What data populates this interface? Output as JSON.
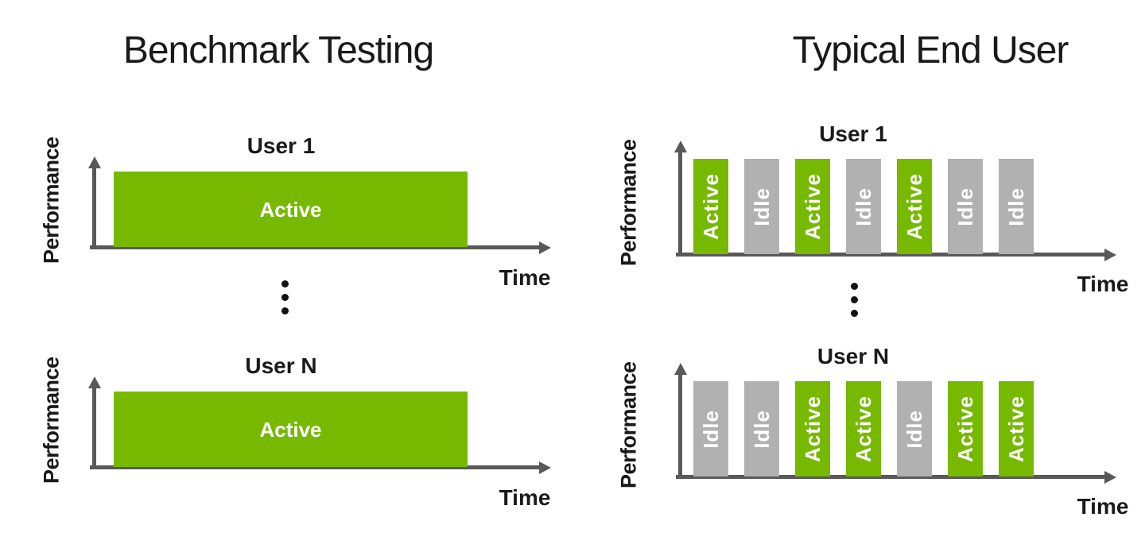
{
  "colors": {
    "active_green": "#76B900",
    "idle_gray": "#B1B1B1",
    "axis_gray": "#595959",
    "text_dark": "#1A1A1A",
    "bar_label_white": "#FFFFFF",
    "background": "#FFFFFF"
  },
  "ellipsis": {
    "dot_count": 3
  },
  "columns": [
    {
      "title": "Benchmark Testing",
      "charts": [
        {
          "user_label": "User 1",
          "y_axis_label": "Performance",
          "x_axis_label": "Time",
          "bar_style": "continuous",
          "bars": [
            {
              "label": "Active",
              "state": "active"
            }
          ]
        },
        {
          "user_label": "User N",
          "y_axis_label": "Performance",
          "x_axis_label": "Time",
          "bar_style": "continuous",
          "bars": [
            {
              "label": "Active",
              "state": "active"
            }
          ]
        }
      ]
    },
    {
      "title": "Typical End User",
      "charts": [
        {
          "user_label": "User 1",
          "y_axis_label": "Performance",
          "x_axis_label": "Time",
          "bar_style": "segmented",
          "bars": [
            {
              "label": "Active",
              "state": "active"
            },
            {
              "label": "Idle",
              "state": "idle"
            },
            {
              "label": "Active",
              "state": "active"
            },
            {
              "label": "Idle",
              "state": "idle"
            },
            {
              "label": "Active",
              "state": "active"
            },
            {
              "label": "Idle",
              "state": "idle"
            },
            {
              "label": "Idle",
              "state": "idle"
            }
          ]
        },
        {
          "user_label": "User N",
          "y_axis_label": "Performance",
          "x_axis_label": "Time",
          "bar_style": "segmented",
          "bars": [
            {
              "label": "Idle",
              "state": "idle"
            },
            {
              "label": "Idle",
              "state": "idle"
            },
            {
              "label": "Active",
              "state": "active"
            },
            {
              "label": "Active",
              "state": "active"
            },
            {
              "label": "Idle",
              "state": "idle"
            },
            {
              "label": "Active",
              "state": "active"
            },
            {
              "label": "Active",
              "state": "active"
            }
          ]
        }
      ]
    }
  ]
}
